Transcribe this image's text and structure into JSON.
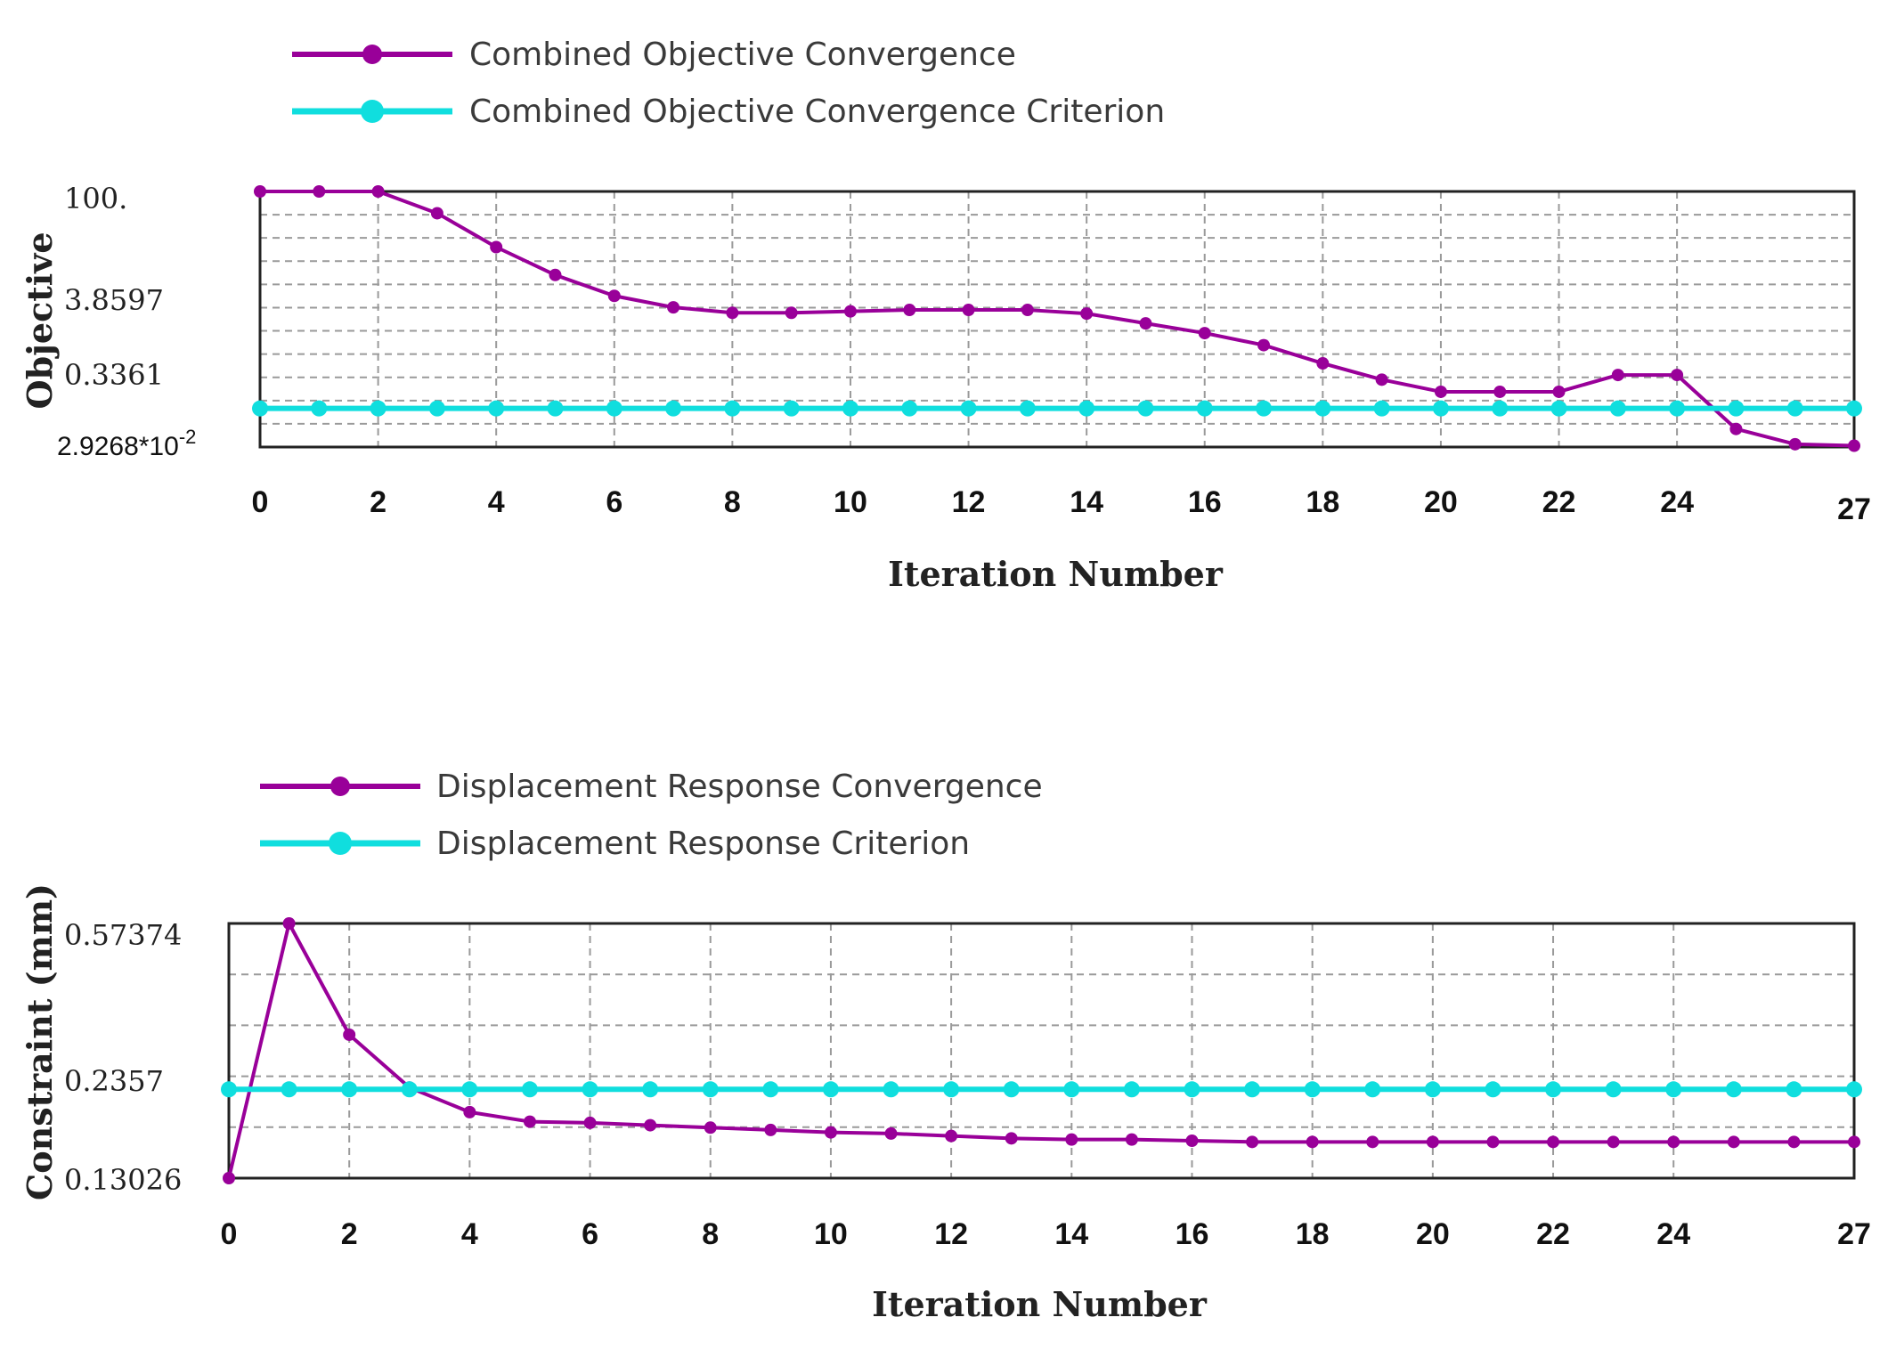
{
  "colors": {
    "objective_series": "#990099",
    "criterion_series": "#10dede",
    "frame": "#222222",
    "grid": "#9a9a9a"
  },
  "chart_data": [
    {
      "type": "line",
      "title": "",
      "xlabel": "Iteration Number",
      "ylabel": "Objective",
      "y_scale": "log",
      "ylim": [
        0.029268,
        100
      ],
      "x_ticks": [
        0,
        2,
        4,
        6,
        8,
        10,
        12,
        14,
        16,
        18,
        20,
        22,
        24,
        27
      ],
      "y_ticks": [
        "100.",
        "3.8597",
        "0.3361"
      ],
      "y_min_label": "2.9268*10",
      "y_min_label_exp": "-2",
      "legend": [
        {
          "name": "Combined Objective Convergence",
          "color": "#990099"
        },
        {
          "name": "Combined Objective Convergence Criterion",
          "color": "#10dede"
        }
      ],
      "series": [
        {
          "name": "Combined Objective Convergence",
          "color": "#990099",
          "x": [
            0,
            1,
            2,
            3,
            4,
            5,
            6,
            7,
            8,
            9,
            10,
            11,
            12,
            13,
            14,
            15,
            16,
            17,
            18,
            19,
            20,
            21,
            22,
            23,
            24,
            25,
            26,
            27
          ],
          "values": [
            100,
            100,
            100,
            50,
            17,
            7,
            3.6,
            2.5,
            2.1,
            2.1,
            2.2,
            2.3,
            2.3,
            2.3,
            2.05,
            1.5,
            1.1,
            0.75,
            0.42,
            0.25,
            0.17,
            0.17,
            0.17,
            0.29,
            0.29,
            0.052,
            0.032,
            0.0305
          ]
        },
        {
          "name": "Combined Objective Convergence Criterion",
          "color": "#10dede",
          "x": [
            0,
            1,
            2,
            3,
            4,
            5,
            6,
            7,
            8,
            9,
            10,
            11,
            12,
            13,
            14,
            15,
            16,
            17,
            18,
            19,
            20,
            21,
            22,
            23,
            24,
            25,
            26,
            27
          ],
          "values": [
            0.1,
            0.1,
            0.1,
            0.1,
            0.1,
            0.1,
            0.1,
            0.1,
            0.1,
            0.1,
            0.1,
            0.1,
            0.1,
            0.1,
            0.1,
            0.1,
            0.1,
            0.1,
            0.1,
            0.1,
            0.1,
            0.1,
            0.1,
            0.1,
            0.1,
            0.1,
            0.1,
            0.1
          ]
        }
      ]
    },
    {
      "type": "line",
      "title": "",
      "xlabel": "Iteration Number",
      "ylabel": "Constraint (mm)",
      "y_scale": "linear",
      "ylim": [
        0.13026,
        0.57374
      ],
      "x_ticks": [
        0,
        2,
        4,
        6,
        8,
        10,
        12,
        14,
        16,
        18,
        20,
        22,
        24,
        27
      ],
      "y_ticks": [
        "0.57374",
        "0.2357",
        "0.13026"
      ],
      "legend": [
        {
          "name": "Displacement Response Convergence",
          "color": "#990099"
        },
        {
          "name": "Displacement Response Criterion",
          "color": "#10dede"
        }
      ],
      "series": [
        {
          "name": "Displacement Response Convergence",
          "color": "#990099",
          "x": [
            0,
            1,
            2,
            3,
            4,
            5,
            6,
            7,
            8,
            9,
            10,
            11,
            12,
            13,
            14,
            15,
            16,
            17,
            18,
            19,
            20,
            21,
            22,
            23,
            24,
            25,
            26,
            27
          ],
          "values": [
            0.13026,
            0.57374,
            0.38,
            0.288,
            0.2452,
            0.2286,
            0.2265,
            0.2224,
            0.2182,
            0.2141,
            0.2099,
            0.2079,
            0.2037,
            0.1995,
            0.1975,
            0.1975,
            0.1954,
            0.1933,
            0.1933,
            0.1933,
            0.1933,
            0.1933,
            0.1933,
            0.1933,
            0.1933,
            0.1933,
            0.1933,
            0.1933
          ]
        },
        {
          "name": "Displacement Response Criterion",
          "color": "#10dede",
          "x": [
            0,
            1,
            2,
            3,
            4,
            5,
            6,
            7,
            8,
            9,
            10,
            11,
            12,
            13,
            14,
            15,
            16,
            17,
            18,
            19,
            20,
            21,
            22,
            23,
            24,
            25,
            26,
            27
          ],
          "values": [
            0.2849,
            0.2849,
            0.2849,
            0.2849,
            0.2849,
            0.2849,
            0.2849,
            0.2849,
            0.2849,
            0.2849,
            0.2849,
            0.2849,
            0.2849,
            0.2849,
            0.2849,
            0.2849,
            0.2849,
            0.2849,
            0.2849,
            0.2849,
            0.2849,
            0.2849,
            0.2849,
            0.2849,
            0.2849,
            0.2849,
            0.2849,
            0.2849
          ]
        }
      ]
    }
  ]
}
